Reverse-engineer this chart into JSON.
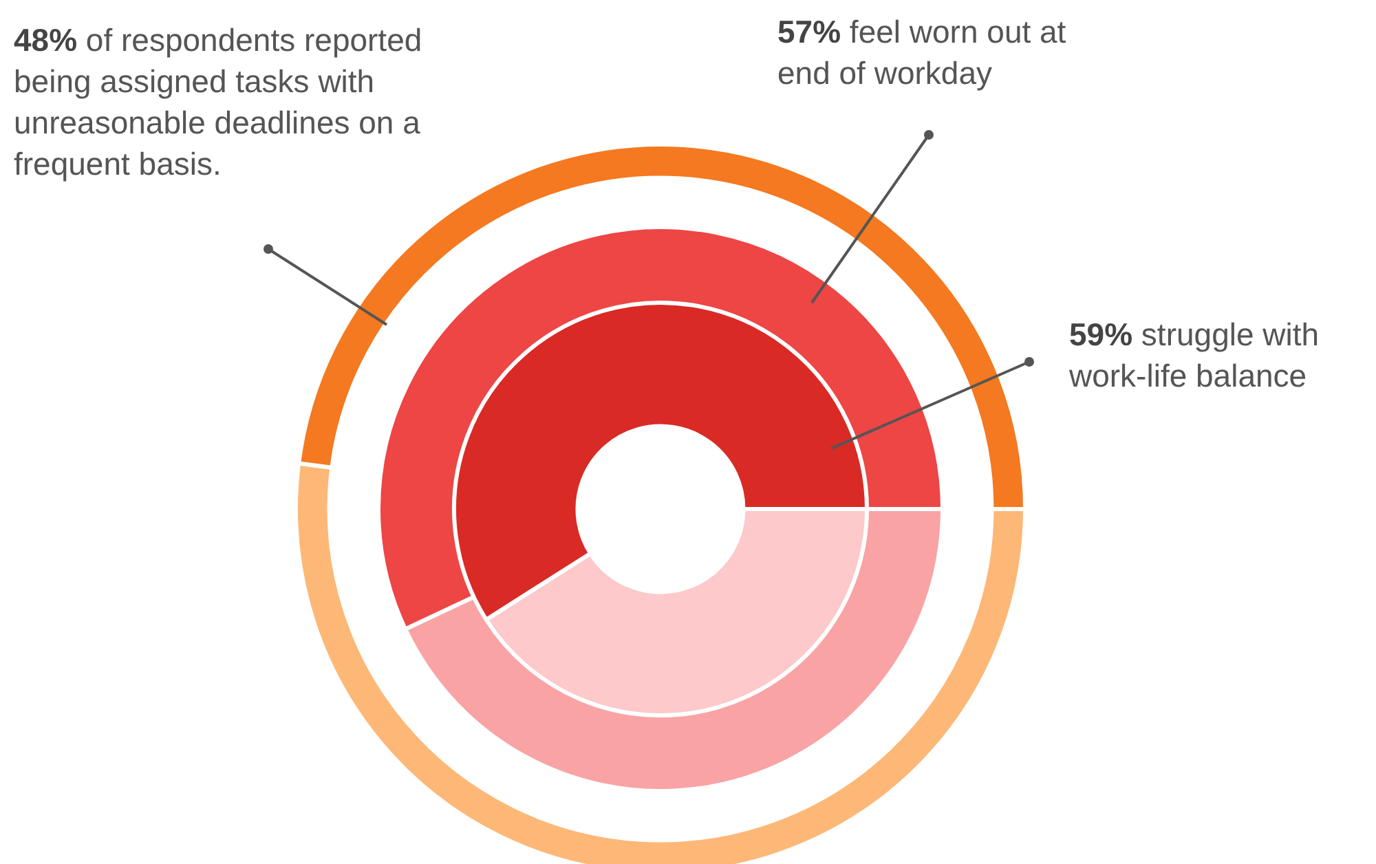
{
  "chart_data": {
    "type": "donut",
    "categories": [
      null,
      null
    ],
    "series": [
      {
        "values": [
          52,
          48
        ],
        "colors": [
          "#fdb877",
          "#f47920"
        ]
      },
      {
        "values": [
          43,
          57
        ],
        "colors": [
          "#f9a3a5",
          "#ee4545"
        ]
      },
      {
        "values": [
          41,
          59
        ],
        "colors": [
          "#fdc9ca",
          "#d92a25"
        ]
      }
    ],
    "annotations": [
      "48% of respondents reported being assigned tasks with unreasonable deadlines on a frequent basis.",
      "57% feel worn out at end of workday",
      "59% struggle with work-life balance"
    ]
  }
}
